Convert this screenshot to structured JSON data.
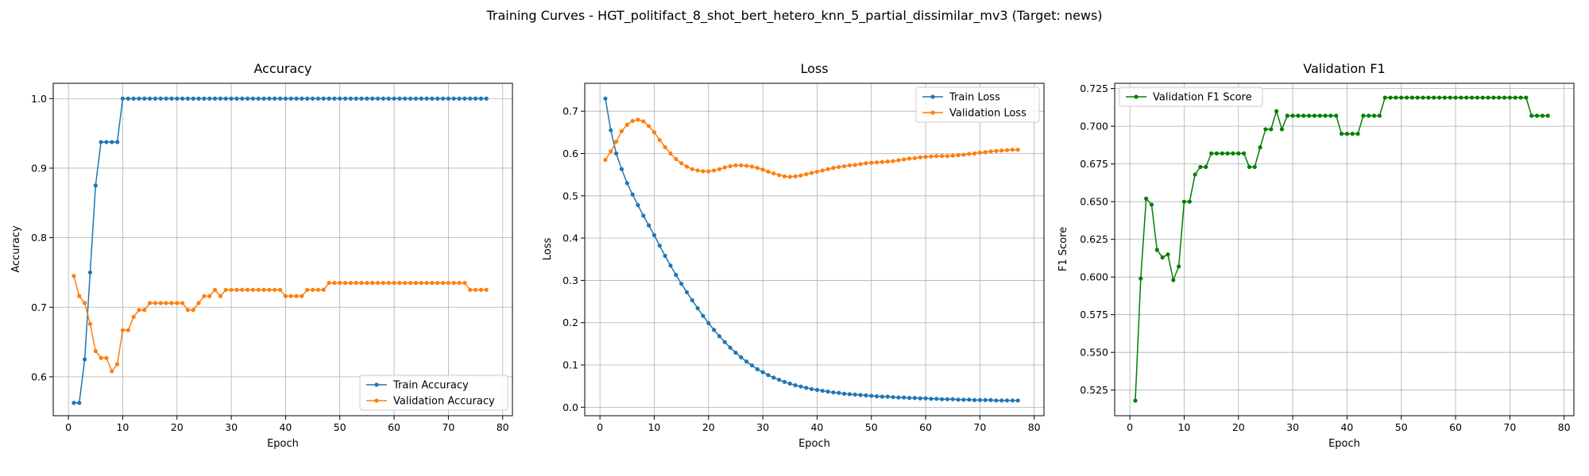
{
  "figure": {
    "suptitle": "Training Curves - HGT_politifact_8_shot_bert_hetero_knn_5_partial_dissimilar_mv3 (Target: news)"
  },
  "chart_data": [
    {
      "type": "line",
      "title": "Accuracy",
      "xlabel": "Epoch",
      "ylabel": "Accuracy",
      "xlim": [
        -2.8,
        81.8
      ],
      "ylim": [
        0.544,
        1.022
      ],
      "xticks": [
        0,
        10,
        20,
        30,
        40,
        50,
        60,
        70,
        80
      ],
      "yticks": [
        0.6,
        0.7,
        0.8,
        0.9,
        1.0
      ],
      "ytick_labels": [
        "0.6",
        "0.7",
        "0.8",
        "0.9",
        "1.0"
      ],
      "grid": true,
      "legend_position": "lower-right",
      "x": [
        1,
        2,
        3,
        4,
        5,
        6,
        7,
        8,
        9,
        10,
        11,
        12,
        13,
        14,
        15,
        16,
        17,
        18,
        19,
        20,
        21,
        22,
        23,
        24,
        25,
        26,
        27,
        28,
        29,
        30,
        31,
        32,
        33,
        34,
        35,
        36,
        37,
        38,
        39,
        40,
        41,
        42,
        43,
        44,
        45,
        46,
        47,
        48,
        49,
        50,
        51,
        52,
        53,
        54,
        55,
        56,
        57,
        58,
        59,
        60,
        61,
        62,
        63,
        64,
        65,
        66,
        67,
        68,
        69,
        70,
        71,
        72,
        73,
        74,
        75,
        76,
        77
      ],
      "series": [
        {
          "name": "Train Accuracy",
          "color": "#1f77b4",
          "values": [
            0.5625,
            0.5625,
            0.625,
            0.75,
            0.875,
            0.9375,
            0.9375,
            0.9375,
            0.9375,
            1.0,
            1.0,
            1.0,
            1.0,
            1.0,
            1.0,
            1.0,
            1.0,
            1.0,
            1.0,
            1.0,
            1.0,
            1.0,
            1.0,
            1.0,
            1.0,
            1.0,
            1.0,
            1.0,
            1.0,
            1.0,
            1.0,
            1.0,
            1.0,
            1.0,
            1.0,
            1.0,
            1.0,
            1.0,
            1.0,
            1.0,
            1.0,
            1.0,
            1.0,
            1.0,
            1.0,
            1.0,
            1.0,
            1.0,
            1.0,
            1.0,
            1.0,
            1.0,
            1.0,
            1.0,
            1.0,
            1.0,
            1.0,
            1.0,
            1.0,
            1.0,
            1.0,
            1.0,
            1.0,
            1.0,
            1.0,
            1.0,
            1.0,
            1.0,
            1.0,
            1.0,
            1.0,
            1.0,
            1.0,
            1.0,
            1.0,
            1.0,
            1.0
          ]
        },
        {
          "name": "Validation Accuracy",
          "color": "#ff7f0e",
          "values": [
            0.745,
            0.716,
            0.706,
            0.676,
            0.637,
            0.627,
            0.627,
            0.608,
            0.618,
            0.667,
            0.667,
            0.686,
            0.696,
            0.696,
            0.706,
            0.706,
            0.706,
            0.706,
            0.706,
            0.706,
            0.706,
            0.696,
            0.696,
            0.706,
            0.716,
            0.716,
            0.725,
            0.716,
            0.725,
            0.725,
            0.725,
            0.725,
            0.725,
            0.725,
            0.725,
            0.725,
            0.725,
            0.725,
            0.725,
            0.716,
            0.716,
            0.716,
            0.716,
            0.725,
            0.725,
            0.725,
            0.725,
            0.735,
            0.735,
            0.735,
            0.735,
            0.735,
            0.735,
            0.735,
            0.735,
            0.735,
            0.735,
            0.735,
            0.735,
            0.735,
            0.735,
            0.735,
            0.735,
            0.735,
            0.735,
            0.735,
            0.735,
            0.735,
            0.735,
            0.735,
            0.735,
            0.735,
            0.735,
            0.725,
            0.725,
            0.725,
            0.725
          ]
        }
      ]
    },
    {
      "type": "line",
      "title": "Loss",
      "xlabel": "Epoch",
      "ylabel": "Loss",
      "xlim": [
        -2.8,
        81.8
      ],
      "ylim": [
        -0.02,
        0.766
      ],
      "xticks": [
        0,
        10,
        20,
        30,
        40,
        50,
        60,
        70,
        80
      ],
      "yticks": [
        0.0,
        0.1,
        0.2,
        0.3,
        0.4,
        0.5,
        0.6,
        0.7
      ],
      "ytick_labels": [
        "0.0",
        "0.1",
        "0.2",
        "0.3",
        "0.4",
        "0.5",
        "0.6",
        "0.7"
      ],
      "grid": true,
      "legend_position": "upper-right",
      "x": [
        1,
        2,
        3,
        4,
        5,
        6,
        7,
        8,
        9,
        10,
        11,
        12,
        13,
        14,
        15,
        16,
        17,
        18,
        19,
        20,
        21,
        22,
        23,
        24,
        25,
        26,
        27,
        28,
        29,
        30,
        31,
        32,
        33,
        34,
        35,
        36,
        37,
        38,
        39,
        40,
        41,
        42,
        43,
        44,
        45,
        46,
        47,
        48,
        49,
        50,
        51,
        52,
        53,
        54,
        55,
        56,
        57,
        58,
        59,
        60,
        61,
        62,
        63,
        64,
        65,
        66,
        67,
        68,
        69,
        70,
        71,
        72,
        73,
        74,
        75,
        76,
        77
      ],
      "series": [
        {
          "name": "Train Loss",
          "color": "#1f77b4",
          "values": [
            0.73,
            0.655,
            0.6,
            0.563,
            0.53,
            0.503,
            0.478,
            0.453,
            0.43,
            0.407,
            0.382,
            0.358,
            0.335,
            0.313,
            0.292,
            0.272,
            0.253,
            0.234,
            0.216,
            0.199,
            0.183,
            0.168,
            0.154,
            0.141,
            0.129,
            0.118,
            0.108,
            0.099,
            0.09,
            0.083,
            0.076,
            0.07,
            0.065,
            0.06,
            0.056,
            0.052,
            0.049,
            0.046,
            0.043,
            0.041,
            0.039,
            0.037,
            0.035,
            0.034,
            0.032,
            0.031,
            0.03,
            0.029,
            0.028,
            0.027,
            0.026,
            0.025,
            0.025,
            0.024,
            0.023,
            0.023,
            0.022,
            0.022,
            0.021,
            0.021,
            0.02,
            0.02,
            0.019,
            0.019,
            0.019,
            0.018,
            0.018,
            0.018,
            0.017,
            0.017,
            0.017,
            0.017,
            0.016,
            0.016,
            0.016,
            0.016,
            0.016
          ]
        },
        {
          "name": "Validation Loss",
          "color": "#ff7f0e",
          "values": [
            0.585,
            0.605,
            0.628,
            0.653,
            0.668,
            0.677,
            0.68,
            0.676,
            0.665,
            0.65,
            0.632,
            0.615,
            0.6,
            0.587,
            0.577,
            0.569,
            0.563,
            0.56,
            0.558,
            0.558,
            0.56,
            0.563,
            0.567,
            0.57,
            0.572,
            0.572,
            0.571,
            0.569,
            0.566,
            0.562,
            0.557,
            0.553,
            0.549,
            0.546,
            0.545,
            0.546,
            0.548,
            0.551,
            0.554,
            0.557,
            0.56,
            0.563,
            0.566,
            0.568,
            0.57,
            0.572,
            0.573,
            0.575,
            0.577,
            0.578,
            0.579,
            0.58,
            0.581,
            0.582,
            0.584,
            0.586,
            0.588,
            0.589,
            0.591,
            0.592,
            0.593,
            0.594,
            0.594,
            0.594,
            0.595,
            0.596,
            0.597,
            0.599,
            0.6,
            0.602,
            0.603,
            0.605,
            0.606,
            0.607,
            0.608,
            0.609,
            0.609
          ]
        }
      ]
    },
    {
      "type": "line",
      "title": "Validation F1",
      "xlabel": "Epoch",
      "ylabel": "F1 Score",
      "xlim": [
        -2.8,
        81.8
      ],
      "ylim": [
        0.508,
        0.7285
      ],
      "xticks": [
        0,
        10,
        20,
        30,
        40,
        50,
        60,
        70,
        80
      ],
      "yticks": [
        0.525,
        0.55,
        0.575,
        0.6,
        0.625,
        0.65,
        0.675,
        0.7,
        0.725
      ],
      "ytick_labels": [
        "0.525",
        "0.550",
        "0.575",
        "0.600",
        "0.625",
        "0.650",
        "0.675",
        "0.700",
        "0.725"
      ],
      "grid": true,
      "legend_position": "upper-left",
      "x": [
        1,
        2,
        3,
        4,
        5,
        6,
        7,
        8,
        9,
        10,
        11,
        12,
        13,
        14,
        15,
        16,
        17,
        18,
        19,
        20,
        21,
        22,
        23,
        24,
        25,
        26,
        27,
        28,
        29,
        30,
        31,
        32,
        33,
        34,
        35,
        36,
        37,
        38,
        39,
        40,
        41,
        42,
        43,
        44,
        45,
        46,
        47,
        48,
        49,
        50,
        51,
        52,
        53,
        54,
        55,
        56,
        57,
        58,
        59,
        60,
        61,
        62,
        63,
        64,
        65,
        66,
        67,
        68,
        69,
        70,
        71,
        72,
        73,
        74,
        75,
        76,
        77
      ],
      "series": [
        {
          "name": "Validation F1 Score",
          "color": "#008000",
          "values": [
            0.518,
            0.599,
            0.652,
            0.648,
            0.618,
            0.613,
            0.615,
            0.598,
            0.607,
            0.65,
            0.65,
            0.668,
            0.673,
            0.673,
            0.682,
            0.682,
            0.682,
            0.682,
            0.682,
            0.682,
            0.682,
            0.673,
            0.673,
            0.686,
            0.698,
            0.698,
            0.71,
            0.698,
            0.707,
            0.707,
            0.707,
            0.707,
            0.707,
            0.707,
            0.707,
            0.707,
            0.707,
            0.707,
            0.695,
            0.695,
            0.695,
            0.695,
            0.707,
            0.707,
            0.707,
            0.707,
            0.719,
            0.719,
            0.719,
            0.719,
            0.719,
            0.719,
            0.719,
            0.719,
            0.719,
            0.719,
            0.719,
            0.719,
            0.719,
            0.719,
            0.719,
            0.719,
            0.719,
            0.719,
            0.719,
            0.719,
            0.719,
            0.719,
            0.719,
            0.719,
            0.719,
            0.719,
            0.719,
            0.707,
            0.707,
            0.707,
            0.707
          ]
        }
      ]
    }
  ]
}
